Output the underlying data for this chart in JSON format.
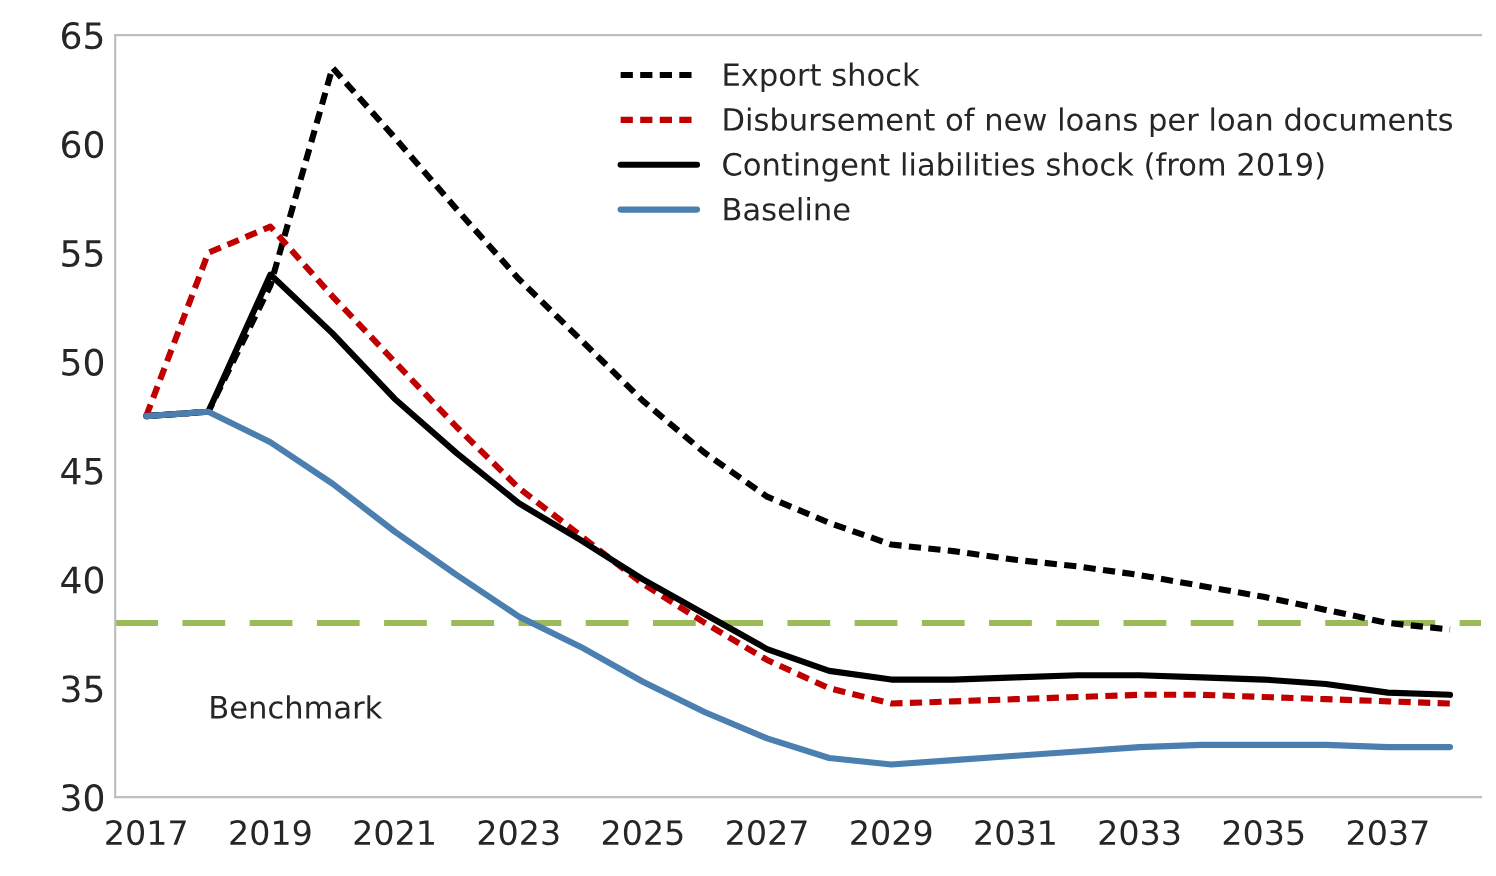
{
  "chart_data": {
    "type": "line",
    "categories": [
      "2017",
      null,
      "2019",
      null,
      "2021",
      null,
      "2023",
      null,
      "2025",
      null,
      "2027",
      null,
      "2029",
      null,
      "2031",
      null,
      "2033",
      null,
      "2035",
      null,
      "2037",
      null
    ],
    "ylim": [
      30,
      65
    ],
    "yticks": [
      30,
      35,
      40,
      45,
      50,
      55,
      60,
      65
    ],
    "grid": false,
    "legend": "top right",
    "marker": "none",
    "series": [
      {
        "name": "Export shock",
        "color": "#000000",
        "line_style": "dashed",
        "values": [
          47.5,
          47.7,
          53.5,
          63.5,
          60.3,
          57.0,
          53.8,
          51.0,
          48.2,
          45.8,
          43.8,
          42.6,
          41.6,
          41.3,
          40.9,
          40.6,
          40.2,
          39.7,
          39.2,
          38.6,
          38.0,
          37.7
        ]
      },
      {
        "name": "Disbursement of new loans per loan documents",
        "color": "#c00000",
        "line_style": "dashed",
        "values": [
          47.5,
          55.0,
          56.2,
          53.0,
          50.0,
          47.0,
          44.2,
          42.0,
          39.8,
          38.0,
          36.3,
          35.0,
          34.3,
          34.4,
          34.5,
          34.6,
          34.7,
          34.7,
          34.6,
          34.5,
          34.4,
          34.3
        ]
      },
      {
        "name": "Contingent liabilities shock (from 2019)",
        "color": "#000000",
        "line_style": "solid",
        "values": [
          47.5,
          47.7,
          54.0,
          51.3,
          48.3,
          45.8,
          43.5,
          41.8,
          40.0,
          38.4,
          36.8,
          35.8,
          35.4,
          35.4,
          35.5,
          35.6,
          35.6,
          35.5,
          35.4,
          35.2,
          34.8,
          34.7
        ]
      },
      {
        "name": "Baseline",
        "color": "#4a7fb0",
        "line_style": "solid",
        "values": [
          47.5,
          47.7,
          46.3,
          44.4,
          42.2,
          40.2,
          38.3,
          36.9,
          35.3,
          33.9,
          32.7,
          31.8,
          31.5,
          31.7,
          31.9,
          32.1,
          32.3,
          32.4,
          32.4,
          32.4,
          32.3,
          32.3
        ]
      }
    ],
    "ref_lines": [
      {
        "axis": "y",
        "value": 38,
        "label": "Benchmark",
        "color": "#9bbb59",
        "line_style": "dashed"
      }
    ]
  }
}
